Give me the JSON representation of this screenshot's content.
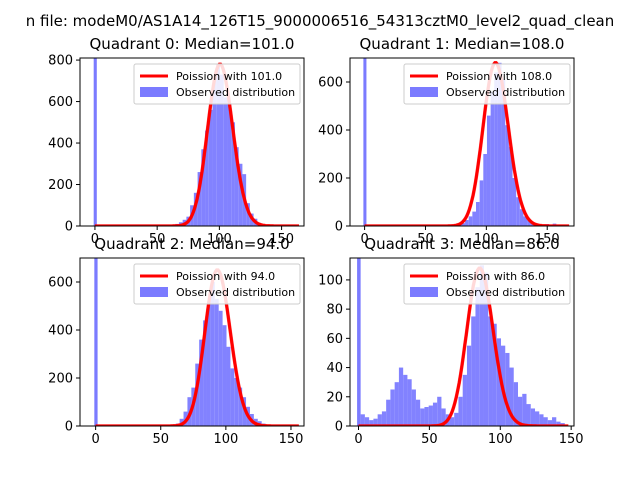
{
  "figure_title": "n file: modeM0/AS1A14_126T15_9000006516_54313cztM0_level2_quad_clean",
  "colors": {
    "hist": "#7b7bff",
    "poisson": "#ff0000",
    "axis": "#000000"
  },
  "chart_data": [
    {
      "type": "bar",
      "title": "Quadrant 0: Median=101.0",
      "xlim": [
        -12,
        168
      ],
      "ylim": [
        0,
        810
      ],
      "xticks": [
        0,
        50,
        100,
        150
      ],
      "yticks": [
        0,
        200,
        400,
        600,
        800
      ],
      "bin_width": 3,
      "spike": {
        "x": 0,
        "height": 810
      },
      "hist": [
        [
          66,
          10
        ],
        [
          69,
          18
        ],
        [
          72,
          30
        ],
        [
          75,
          45
        ],
        [
          78,
          100
        ],
        [
          81,
          160
        ],
        [
          84,
          260
        ],
        [
          87,
          370
        ],
        [
          90,
          460
        ],
        [
          93,
          560
        ],
        [
          96,
          700
        ],
        [
          99,
          780
        ],
        [
          102,
          730
        ],
        [
          105,
          620
        ],
        [
          108,
          590
        ],
        [
          111,
          500
        ],
        [
          114,
          380
        ],
        [
          117,
          300
        ],
        [
          120,
          250
        ],
        [
          123,
          110
        ],
        [
          126,
          60
        ],
        [
          129,
          35
        ],
        [
          132,
          15
        ],
        [
          135,
          8
        ]
      ],
      "legend": [
        "Poission with 101.0",
        "Observed distribution"
      ],
      "poisson": {
        "mu": 101.0,
        "peak": 780
      }
    },
    {
      "type": "bar",
      "title": "Quadrant 1: Median=108.0",
      "xlim": [
        -12,
        172
      ],
      "ylim": [
        0,
        700
      ],
      "xticks": [
        0,
        50,
        100,
        150
      ],
      "yticks": [
        0,
        200,
        400,
        600
      ],
      "bin_width": 3,
      "spike": {
        "x": 0,
        "height": 700
      },
      "hist": [
        [
          78,
          5
        ],
        [
          81,
          12
        ],
        [
          84,
          25
        ],
        [
          87,
          40
        ],
        [
          90,
          60
        ],
        [
          93,
          100
        ],
        [
          96,
          190
        ],
        [
          99,
          300
        ],
        [
          102,
          460
        ],
        [
          105,
          560
        ],
        [
          108,
          640
        ],
        [
          111,
          680
        ],
        [
          114,
          610
        ],
        [
          117,
          420
        ],
        [
          120,
          330
        ],
        [
          123,
          200
        ],
        [
          126,
          120
        ],
        [
          129,
          70
        ],
        [
          132,
          40
        ],
        [
          135,
          25
        ],
        [
          138,
          15
        ],
        [
          141,
          10
        ],
        [
          150,
          8
        ],
        [
          156,
          10
        ],
        [
          162,
          5
        ]
      ],
      "legend": [
        "Poission with 108.0",
        "Observed distribution"
      ],
      "poisson": {
        "mu": 108.0,
        "peak": 680
      }
    },
    {
      "type": "bar",
      "title": "Quadrant 2: Median=94.0",
      "xlim": [
        -12,
        160
      ],
      "ylim": [
        0,
        700
      ],
      "xticks": [
        0,
        50,
        100,
        150
      ],
      "yticks": [
        0,
        200,
        400,
        600
      ],
      "bin_width": 3,
      "spike": {
        "x": 0,
        "height": 700
      },
      "hist": [
        [
          63,
          10
        ],
        [
          66,
          30
        ],
        [
          69,
          60
        ],
        [
          72,
          120
        ],
        [
          75,
          160
        ],
        [
          78,
          260
        ],
        [
          81,
          360
        ],
        [
          84,
          440
        ],
        [
          87,
          520
        ],
        [
          90,
          600
        ],
        [
          93,
          530
        ],
        [
          96,
          480
        ],
        [
          99,
          420
        ],
        [
          102,
          330
        ],
        [
          105,
          240
        ],
        [
          108,
          200
        ],
        [
          111,
          160
        ],
        [
          114,
          120
        ],
        [
          117,
          80
        ],
        [
          120,
          50
        ],
        [
          123,
          30
        ],
        [
          126,
          20
        ],
        [
          129,
          10
        ],
        [
          132,
          5
        ]
      ],
      "legend": [
        "Poission with 94.0",
        "Observed distribution"
      ],
      "poisson": {
        "mu": 94.0,
        "peak": 650
      }
    },
    {
      "type": "bar",
      "title": "Quadrant 3: Median=86.0",
      "xlim": [
        -6,
        152
      ],
      "ylim": [
        0,
        115
      ],
      "xticks": [
        0,
        50,
        100,
        150
      ],
      "yticks": [
        0,
        20,
        40,
        60,
        80,
        100
      ],
      "bin_width": 3,
      "spike": {
        "x": 0,
        "height": 115
      },
      "hist": [
        [
          3,
          8
        ],
        [
          6,
          6
        ],
        [
          9,
          4
        ],
        [
          12,
          5
        ],
        [
          15,
          8
        ],
        [
          18,
          10
        ],
        [
          21,
          18
        ],
        [
          24,
          25
        ],
        [
          27,
          30
        ],
        [
          30,
          40
        ],
        [
          33,
          35
        ],
        [
          36,
          32
        ],
        [
          39,
          25
        ],
        [
          42,
          18
        ],
        [
          45,
          12
        ],
        [
          48,
          13
        ],
        [
          51,
          14
        ],
        [
          54,
          16
        ],
        [
          57,
          20
        ],
        [
          60,
          12
        ],
        [
          63,
          8
        ],
        [
          66,
          6
        ],
        [
          69,
          9
        ],
        [
          72,
          20
        ],
        [
          75,
          35
        ],
        [
          78,
          55
        ],
        [
          81,
          75
        ],
        [
          84,
          95
        ],
        [
          87,
          110
        ],
        [
          90,
          105
        ],
        [
          93,
          75
        ],
        [
          96,
          70
        ],
        [
          99,
          60
        ],
        [
          102,
          55
        ],
        [
          105,
          50
        ],
        [
          108,
          40
        ],
        [
          111,
          30
        ],
        [
          114,
          20
        ],
        [
          117,
          22
        ],
        [
          120,
          15
        ],
        [
          123,
          12
        ],
        [
          126,
          10
        ],
        [
          129,
          8
        ],
        [
          132,
          6
        ],
        [
          135,
          4
        ],
        [
          138,
          6
        ],
        [
          141,
          3
        ],
        [
          144,
          2
        ]
      ],
      "legend": [
        "Poission with 86.0",
        "Observed distribution"
      ],
      "poisson": {
        "mu": 86.0,
        "peak": 108
      }
    }
  ]
}
